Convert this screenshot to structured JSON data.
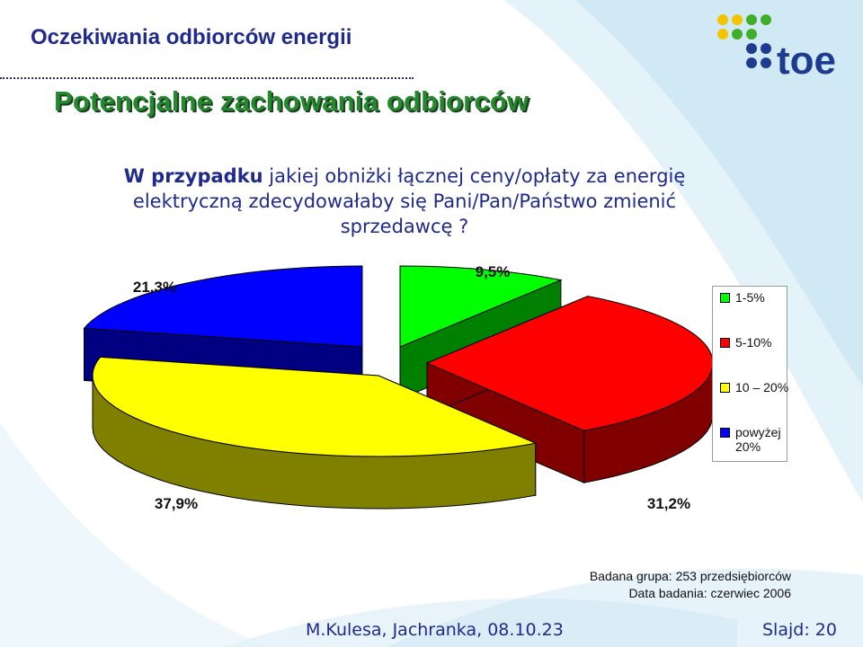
{
  "header": {
    "title": "Oczekiwania odbiorców energii"
  },
  "slide": {
    "title": "Potencjalne zachowania odbiorców",
    "question_lead": "W przypadku",
    "question_rest": " jakiej obniżki łącznej ceny/opłaty za energię elektryczną zdecydowałaby się Pani/Pan/Państwo zmienić sprzedawcę ?"
  },
  "logo": {
    "text": "toe",
    "colors": {
      "yellow": "#f2c500",
      "green": "#3fae2a",
      "blue": "#1d3b8f"
    }
  },
  "chart_data": {
    "type": "pie",
    "style": "3d-exploded",
    "categories": [
      "1-5%",
      "5-10%",
      "10 – 20%",
      "powyżej 20%"
    ],
    "values": [
      9.5,
      31.2,
      37.9,
      21.3
    ],
    "labels": [
      "9,5%",
      "31,2%",
      "37,9%",
      "21,3%"
    ],
    "colors": [
      "#00ff00",
      "#ff0000",
      "#ffff00",
      "#0000ff"
    ],
    "side_colors": [
      "#008000",
      "#800000",
      "#808000",
      "#000080"
    ],
    "legend": {
      "placement": "right",
      "entries": [
        {
          "label": "1-5%",
          "color": "#00ff00"
        },
        {
          "label": "5-10%",
          "color": "#ff0000"
        },
        {
          "label": "10 – 20%",
          "color": "#ffff00"
        },
        {
          "label": "powyżej 20%",
          "color": "#0000ff"
        }
      ]
    }
  },
  "info": {
    "group": "Badana grupa: 253 przedsiębiorców",
    "date": "Data badania: czerwiec 2006"
  },
  "footer": {
    "author": "M.Kulesa, Jachranka, 08.10.23",
    "slide": "Slajd: 20"
  }
}
